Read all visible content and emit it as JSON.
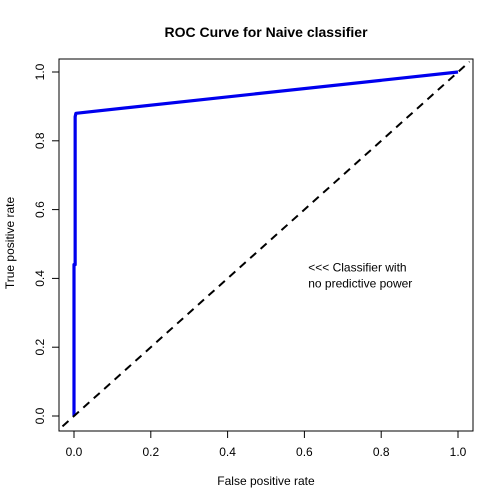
{
  "chart_data": {
    "type": "line",
    "title": "ROC Curve for Naive classifier",
    "xlabel": "False positive rate",
    "ylabel": "True positive rate",
    "xlim": [
      0,
      1
    ],
    "ylim": [
      0,
      1
    ],
    "x_ticks": [
      0.0,
      0.2,
      0.4,
      0.6,
      0.8,
      1.0
    ],
    "x_tick_labels": [
      "0.0",
      "0.2",
      "0.4",
      "0.6",
      "0.8",
      "1.0"
    ],
    "y_ticks": [
      0.0,
      0.2,
      0.4,
      0.6,
      0.8,
      1.0
    ],
    "y_tick_labels": [
      "0.0",
      "0.2",
      "0.4",
      "0.6",
      "0.8",
      "1.0"
    ],
    "grid": false,
    "legend": "none",
    "series": [
      {
        "color": "#0000ee",
        "style": "solid",
        "x": [
          0.0,
          0.0,
          0.003,
          0.003,
          0.005,
          1.0
        ],
        "y": [
          0.0,
          0.44,
          0.44,
          0.87,
          0.88,
          1.0
        ]
      },
      {
        "color": "#000000",
        "style": "dashed",
        "x": [
          -0.03,
          1.03
        ],
        "y": [
          -0.03,
          1.03
        ]
      }
    ],
    "annotations": [
      {
        "lines": [
          "<<<  Classifier with",
          "no predictive power"
        ],
        "x": 0.61,
        "y": 0.42
      }
    ]
  }
}
